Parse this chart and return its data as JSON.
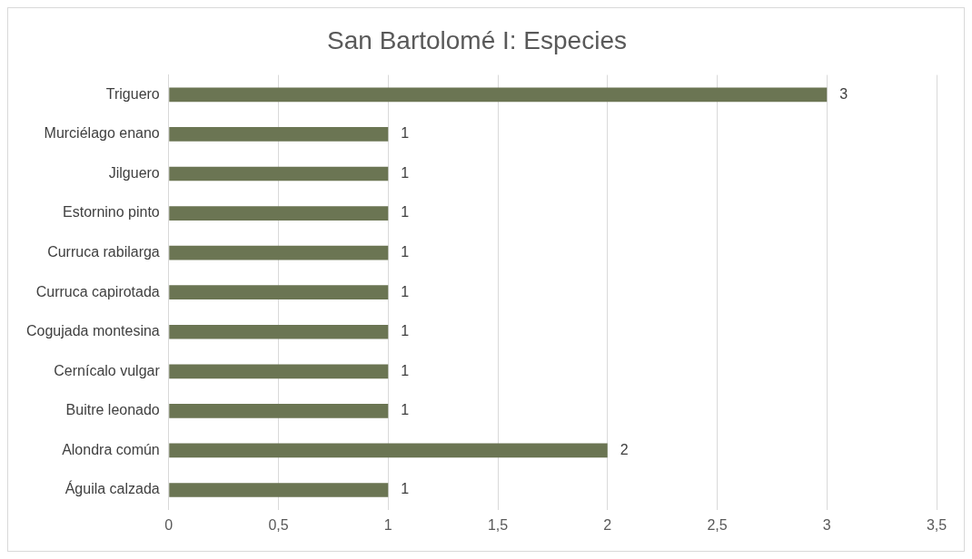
{
  "chart_data": {
    "type": "bar",
    "orientation": "horizontal",
    "title": "San Bartolomé I: Especies",
    "categories": [
      "Triguero",
      "Murciélago enano",
      "Jilguero",
      "Estornino pinto",
      "Curruca rabilarga",
      "Curruca capirotada",
      "Cogujada montesina",
      "Cernícalo vulgar",
      "Buitre leonado",
      "Alondra común",
      "Águila calzada"
    ],
    "values": [
      3,
      1,
      1,
      1,
      1,
      1,
      1,
      1,
      1,
      2,
      1
    ],
    "color": "#6b7553",
    "xlim": [
      0,
      3.5
    ],
    "xticks": [
      0,
      {
        "value": 0.5,
        "label": "0,5"
      },
      1,
      {
        "value": 1.5,
        "label": "1,5"
      },
      2,
      {
        "value": 2.5,
        "label": "2,5"
      },
      3,
      {
        "value": 3.5,
        "label": "3,5"
      }
    ],
    "grid": "x",
    "data_labels": true,
    "legend": false
  }
}
